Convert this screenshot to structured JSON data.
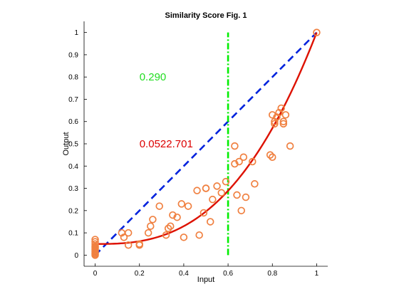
{
  "chart_data": {
    "type": "scatter",
    "title": "Similarity Score Fig. 1",
    "xlabel": "Input",
    "ylabel": "Output",
    "xlim": [
      -0.05,
      1.05
    ],
    "ylim": [
      -0.05,
      1.05
    ],
    "xticks": [
      0,
      0.2,
      0.4,
      0.6,
      0.8,
      1
    ],
    "xtick_labels": [
      "0",
      "0.2",
      "0.4",
      "0.6",
      "0.8",
      "1"
    ],
    "yticks": [
      0,
      0.1,
      0.2,
      0.3,
      0.4,
      0.5,
      0.6,
      0.7,
      0.8,
      0.9,
      1
    ],
    "ytick_labels": [
      "0",
      "0.1",
      "0.2",
      "0.3",
      "0.4",
      "0.5",
      "0.6",
      "0.7",
      "0.8",
      "0.9",
      "1"
    ],
    "grid": false,
    "annotations": [
      {
        "text": "0.290",
        "x": 0.2,
        "y": 0.8,
        "color": "#22dd22"
      },
      {
        "text": "0.0522.701",
        "x": 0.2,
        "y": 0.5,
        "color": "#dd0000"
      }
    ],
    "points": {
      "color": "#f08040",
      "marker": "circle-open",
      "x": [
        0,
        0,
        0,
        0,
        0,
        0,
        0,
        0,
        0,
        0,
        0,
        0,
        0.12,
        0.13,
        0.15,
        0.15,
        0.2,
        0.2,
        0.24,
        0.25,
        0.26,
        0.29,
        0.32,
        0.33,
        0.34,
        0.35,
        0.37,
        0.39,
        0.4,
        0.42,
        0.46,
        0.47,
        0.49,
        0.5,
        0.5,
        0.52,
        0.53,
        0.55,
        0.57,
        0.59,
        0.63,
        0.63,
        0.64,
        0.65,
        0.66,
        0.67,
        0.68,
        0.71,
        0.72,
        0.79,
        0.8,
        0.8,
        0.81,
        0.81,
        0.82,
        0.83,
        0.84,
        0.85,
        0.85,
        0.86,
        0.88,
        1.0
      ],
      "y": [
        0.07,
        0.06,
        0.05,
        0.04,
        0.035,
        0.03,
        0.025,
        0.02,
        0.015,
        0.01,
        0.005,
        0,
        0.1,
        0.08,
        0.1,
        0.045,
        0.05,
        0.045,
        0.1,
        0.13,
        0.16,
        0.22,
        0.09,
        0.12,
        0.13,
        0.18,
        0.17,
        0.23,
        0.08,
        0.22,
        0.29,
        0.09,
        0.19,
        0.3,
        0.3,
        0.15,
        0.25,
        0.31,
        0.28,
        0.33,
        0.49,
        0.41,
        0.27,
        0.42,
        0.2,
        0.44,
        0.26,
        0.42,
        0.32,
        0.45,
        0.63,
        0.44,
        0.6,
        0.59,
        0.62,
        0.64,
        0.66,
        0.59,
        0.6,
        0.63,
        0.49,
        1.0
      ]
    },
    "lines": [
      {
        "style": "dashed",
        "color": "#0022dd",
        "x": [
          0,
          1
        ],
        "y": [
          0,
          1
        ]
      },
      {
        "style": "dashdot",
        "color": "#00ee00",
        "x": [
          0.6,
          0.6
        ],
        "y": [
          0,
          1
        ]
      },
      {
        "style": "solid",
        "color": "#dd1100",
        "curve": "0.05+0.95x^2.701",
        "x_range": [
          0,
          1
        ]
      }
    ]
  }
}
